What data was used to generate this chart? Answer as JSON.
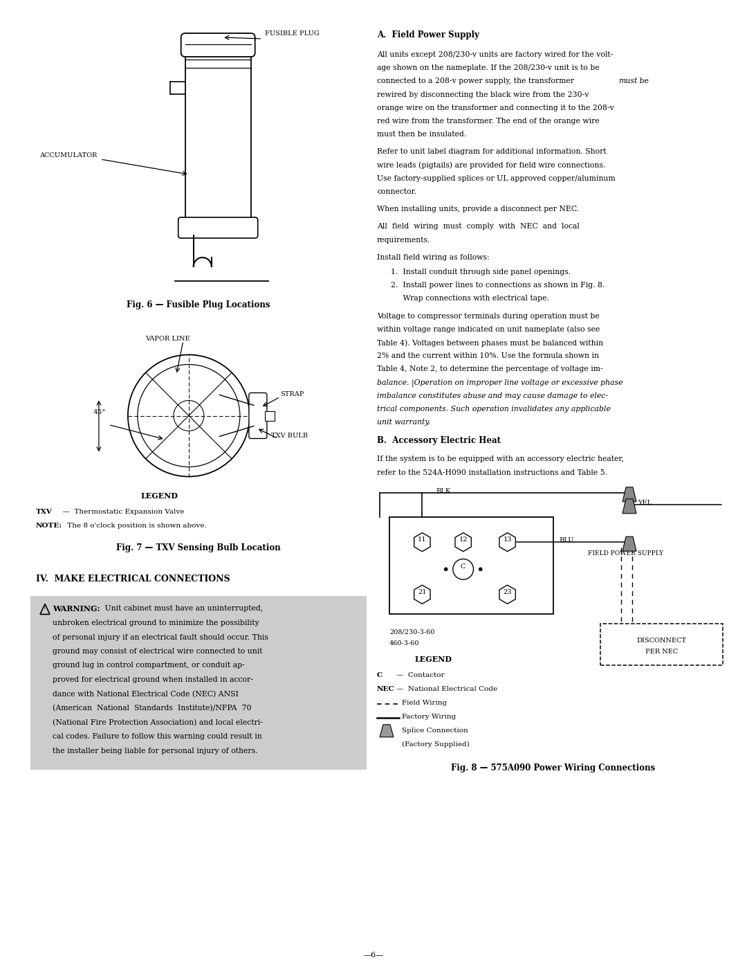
{
  "bg_color": "#ffffff",
  "page_width": 10.8,
  "page_height": 13.97,
  "section_a_title": "A.  Field Power Supply",
  "section_a_p1": [
    "All units except 208/230-v units are factory wired for the volt-",
    "age shown on the nameplate. If the 208/230-v unit is to be",
    "connected to a 208-v power supply, the transformer |must| be",
    "rewired by disconnecting the black wire from the 230-v",
    "orange wire on the transformer and connecting it to the 208-v",
    "red wire from the transformer. The end of the orange wire",
    "must then be insulated."
  ],
  "section_a_p2": [
    "Refer to unit label diagram for additional information. Short",
    "wire leads (pigtails) are provided for field wire connections.",
    "Use factory-supplied splices or UL approved copper/aluminum",
    "connector."
  ],
  "section_a_p3": "When installing units, provide a disconnect per NEC.",
  "section_a_p4": [
    "All  field  wiring  must  comply  with  NEC  and  local",
    "requirements."
  ],
  "section_a_p5": "Install field wiring as follows:",
  "section_a_list1": "1.  Install conduit through side panel openings.",
  "section_a_list2a": "2.  Install power lines to connections as shown in Fig. 8.",
  "section_a_list2b": "     Wrap connections with electrical tape.",
  "section_a_p6": [
    "Voltage to compressor terminals during operation must be",
    "within voltage range indicated on unit nameplate (also see",
    "Table 4). Voltages between phases must be balanced within",
    "2% and the current within 10%. Use the formula shown in",
    "Table 4, Note 2, to determine the percentage of voltage im-",
    "balance. |Operation on improper line voltage or excessive phase",
    "imbalance constitutes abuse and may cause damage to elec-",
    "trical components. Such operation invalidates any applicable",
    "unit warranty.|"
  ],
  "section_b_title": "B.  Accessory Electric Heat",
  "section_b_p1": [
    "If the system is to be equipped with an accessory electric heater,",
    "refer to the 524A-H090 installation instructions and Table 5."
  ],
  "fig6_caption": "Fig. 6 — Fusible Plug Locations",
  "fig7_caption": "Fig. 7 — TXV Sensing Bulb Location",
  "fig8_caption": "Fig. 8 — 575A090 Power Wiring Connections",
  "legend7_title": "LEGEND",
  "legend7_txv_bold": "TXV",
  "legend7_txv_rest": "  —  Thermostatic Expansion Valve",
  "legend7_note_bold": "NOTE:",
  "legend7_note_rest": " The 8 o'clock position is shown above.",
  "section_iv_title": "IV.  MAKE ELECTRICAL CONNECTIONS",
  "warning_lines": [
    "unbroken electrical ground to minimize the possibility",
    "of personal injury if an electrical fault should occur. This",
    "ground may consist of electrical wire connected to unit",
    "ground lug in control compartment, or conduit ap-",
    "proved for electrical ground when installed in accor-",
    "dance with National Electrical Code (NEC) ANSI",
    "(American  National  Standards  Institute)/NFPA  70",
    "(National Fire Protection Association) and local electri-",
    "cal codes. Failure to follow this warning could result in",
    "the installer being liable for personal injury of others."
  ],
  "legend8_title": "LEGEND",
  "page_num": "—6—"
}
